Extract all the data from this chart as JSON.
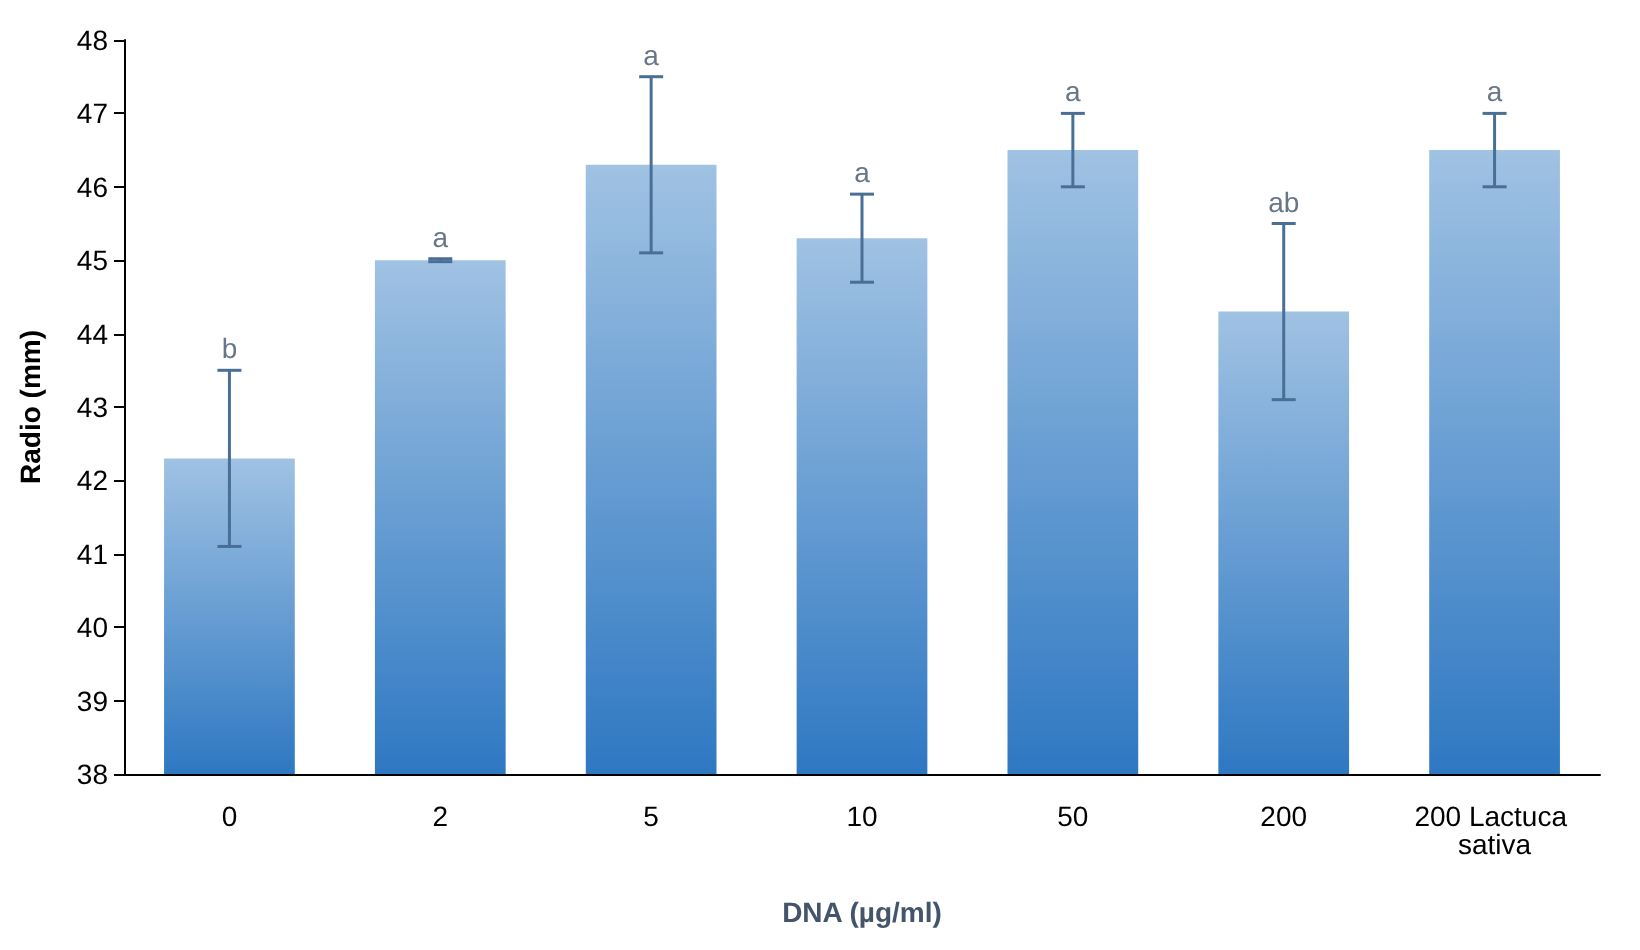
{
  "chart_data": {
    "type": "bar",
    "xlabel": "DNA (µg/ml)",
    "ylabel": "Radio (mm)",
    "categories": [
      "0",
      "2",
      "5",
      "10",
      "50",
      "200",
      "200 Lactuca sativa"
    ],
    "values": [
      42.3,
      45.0,
      46.3,
      45.3,
      46.5,
      44.3,
      46.5
    ],
    "errors": [
      1.2,
      0.02,
      1.2,
      0.6,
      0.5,
      1.2,
      0.5
    ],
    "color": "#2e78c2",
    "ylim": [
      38,
      48
    ],
    "yticks": [
      38,
      39,
      40,
      41,
      42,
      43,
      44,
      45,
      46,
      47,
      48
    ],
    "grid": false,
    "annotations": [
      {
        "text": "b",
        "x": "0",
        "y": 43.5
      },
      {
        "text": "a",
        "x": "2",
        "y": 45.02
      },
      {
        "text": "a",
        "x": "5",
        "y": 47.5
      },
      {
        "text": "a",
        "x": "10",
        "y": 45.9
      },
      {
        "text": "a",
        "x": "50",
        "y": 47.0
      },
      {
        "text": "ab",
        "x": "200",
        "y": 45.5
      },
      {
        "text": "a",
        "x": "200 Lactuca sativa",
        "y": 47.0
      }
    ]
  }
}
